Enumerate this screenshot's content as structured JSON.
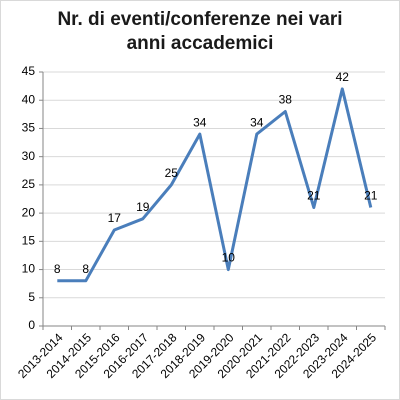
{
  "chart_data": {
    "type": "line",
    "title": "Nr. di eventi/conferenze nei vari anni accademici",
    "categories": [
      "2013-2014",
      "2014-2015",
      "2015-2016",
      "2016-2017",
      "2017-2018",
      "2018-2019",
      "2019-2020",
      "2020-2021",
      "2021-2022",
      "2022-2023",
      "2023-2024",
      "2024-2025"
    ],
    "values": [
      8,
      8,
      17,
      19,
      25,
      34,
      10,
      34,
      38,
      21,
      42,
      21
    ],
    "color": "#4a7ebb",
    "ylim": [
      0,
      45
    ],
    "yticks": [
      0,
      5,
      10,
      15,
      20,
      25,
      30,
      35,
      40,
      45
    ],
    "grid": true
  }
}
